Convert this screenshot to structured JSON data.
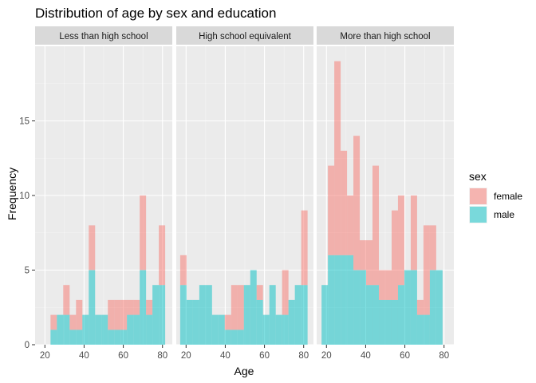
{
  "chart_data": {
    "type": "bar",
    "subtype": "stacked-histogram",
    "title": "Distribution of age by sex and education",
    "xlabel": "Age",
    "ylabel": "Frequency",
    "xlim": [
      15,
      85
    ],
    "ylim": [
      0,
      20
    ],
    "x_ticks": [
      20,
      40,
      60,
      80
    ],
    "y_ticks": [
      0,
      5,
      10,
      15
    ],
    "bin_width": 3.25,
    "grid": true,
    "legend": {
      "title": "sex",
      "position": "right",
      "entries": [
        {
          "label": "female",
          "color": "#F8766D"
        },
        {
          "label": "male",
          "color": "#00BFC4"
        }
      ]
    },
    "panels": [
      {
        "label": "Less than high school",
        "bin_starts": [
          22.875,
          26.125,
          29.375,
          32.625,
          35.875,
          39.125,
          42.375,
          45.625,
          48.875,
          52.125,
          55.375,
          58.625,
          61.875,
          65.125,
          68.375,
          71.625,
          74.875,
          78.125
        ],
        "male": [
          1,
          2,
          2,
          1,
          1,
          2,
          5,
          2,
          2,
          1,
          1,
          1,
          2,
          2,
          5,
          2,
          4,
          4
        ],
        "female": [
          1,
          0,
          2,
          1,
          2,
          0,
          3,
          0,
          0,
          2,
          2,
          2,
          1,
          1,
          5,
          1,
          0,
          4
        ]
      },
      {
        "label": "High school equivalent",
        "bin_starts": [
          17.0,
          20.25,
          23.5,
          26.75,
          30.0,
          33.25,
          36.5,
          39.75,
          43.0,
          46.25,
          49.5,
          52.75,
          56.0,
          59.25,
          62.5,
          65.75,
          69.0,
          72.25,
          75.5,
          78.75
        ],
        "male": [
          4,
          3,
          3,
          4,
          4,
          2,
          2,
          1,
          1,
          1,
          4,
          5,
          3,
          2,
          4,
          2,
          2,
          3,
          4,
          4
        ],
        "female": [
          2,
          0,
          0,
          0,
          0,
          0,
          0,
          1,
          3,
          3,
          0,
          0,
          1,
          0,
          0,
          0,
          3,
          0,
          0,
          5
        ]
      },
      {
        "label": "More than high school",
        "bin_starts": [
          17.5,
          20.75,
          24.0,
          27.25,
          30.5,
          33.75,
          37.0,
          40.25,
          43.5,
          46.75,
          50.0,
          53.25,
          56.5,
          59.75,
          63.0,
          66.25,
          69.5,
          72.75,
          76.0,
          79.25
        ],
        "male": [
          4,
          6,
          6,
          6,
          6,
          5,
          5,
          4,
          4,
          3,
          3,
          3,
          4,
          5,
          5,
          2,
          2,
          5,
          5,
          0
        ],
        "female": [
          0,
          6,
          13,
          7,
          4,
          9,
          2,
          3,
          8,
          2,
          2,
          6,
          6,
          0,
          5,
          1,
          6,
          3,
          0,
          0
        ]
      }
    ]
  }
}
